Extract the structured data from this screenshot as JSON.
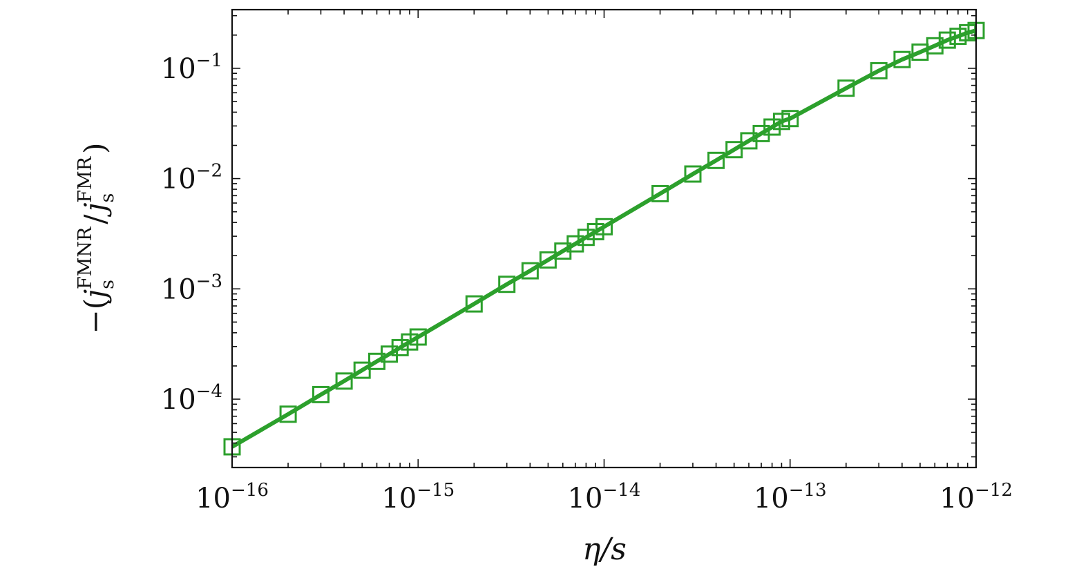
{
  "chart_data": {
    "type": "line",
    "title": "",
    "xlabel": "η/s",
    "ylabel": "−(j_s^FMNR / j_s^FMR)",
    "ylabel_parts": {
      "prefix": "−(",
      "j1": "j",
      "sub1": "s",
      "sup1": "FMNR",
      "slash": "/",
      "j2": "j",
      "sub2": "s",
      "sup2": "FMR",
      "suffix": ")"
    },
    "xscale": "log",
    "yscale": "log",
    "xlim": [
      1e-16,
      1e-12
    ],
    "ylim": [
      2.4e-05,
      0.34
    ],
    "x_ticks": [
      {
        "value": 1e-16,
        "base": "10",
        "exp": "−16"
      },
      {
        "value": 1e-15,
        "base": "10",
        "exp": "−15"
      },
      {
        "value": 1e-14,
        "base": "10",
        "exp": "−14"
      },
      {
        "value": 1e-13,
        "base": "10",
        "exp": "−13"
      },
      {
        "value": 1e-12,
        "base": "10",
        "exp": "−12"
      }
    ],
    "y_ticks": [
      {
        "value": 0.0001,
        "base": "10",
        "exp": "−4"
      },
      {
        "value": 0.001,
        "base": "10",
        "exp": "−3"
      },
      {
        "value": 0.01,
        "base": "10",
        "exp": "−2"
      },
      {
        "value": 0.1,
        "base": "10",
        "exp": "−1"
      }
    ],
    "grid": false,
    "series": [
      {
        "color": "#2ca02c",
        "marker": "square-open",
        "line": "solid",
        "x": [
          1e-16,
          2e-16,
          3e-16,
          4e-16,
          5e-16,
          6e-16,
          7e-16,
          8e-16,
          9e-16,
          1e-15,
          2e-15,
          3e-15,
          4e-15,
          5e-15,
          6e-15,
          7e-15,
          8e-15,
          9e-15,
          1e-14,
          2e-14,
          3e-14,
          4e-14,
          5e-14,
          6e-14,
          7e-14,
          8e-14,
          9e-14,
          1e-13,
          2e-13,
          3e-13,
          4e-13,
          5e-13,
          6e-13,
          7e-13,
          8e-13,
          9e-13,
          1e-12
        ],
        "y": [
          3.7e-05,
          7.3e-05,
          0.00011,
          0.000146,
          0.000183,
          0.00022,
          0.000256,
          0.000293,
          0.00033,
          0.000366,
          0.00073,
          0.0011,
          0.00146,
          0.00183,
          0.0022,
          0.00256,
          0.00293,
          0.0033,
          0.00366,
          0.0073,
          0.011,
          0.0146,
          0.0183,
          0.022,
          0.0256,
          0.0293,
          0.033,
          0.035,
          0.066,
          0.095,
          0.12,
          0.14,
          0.16,
          0.18,
          0.195,
          0.21,
          0.22
        ]
      }
    ]
  }
}
